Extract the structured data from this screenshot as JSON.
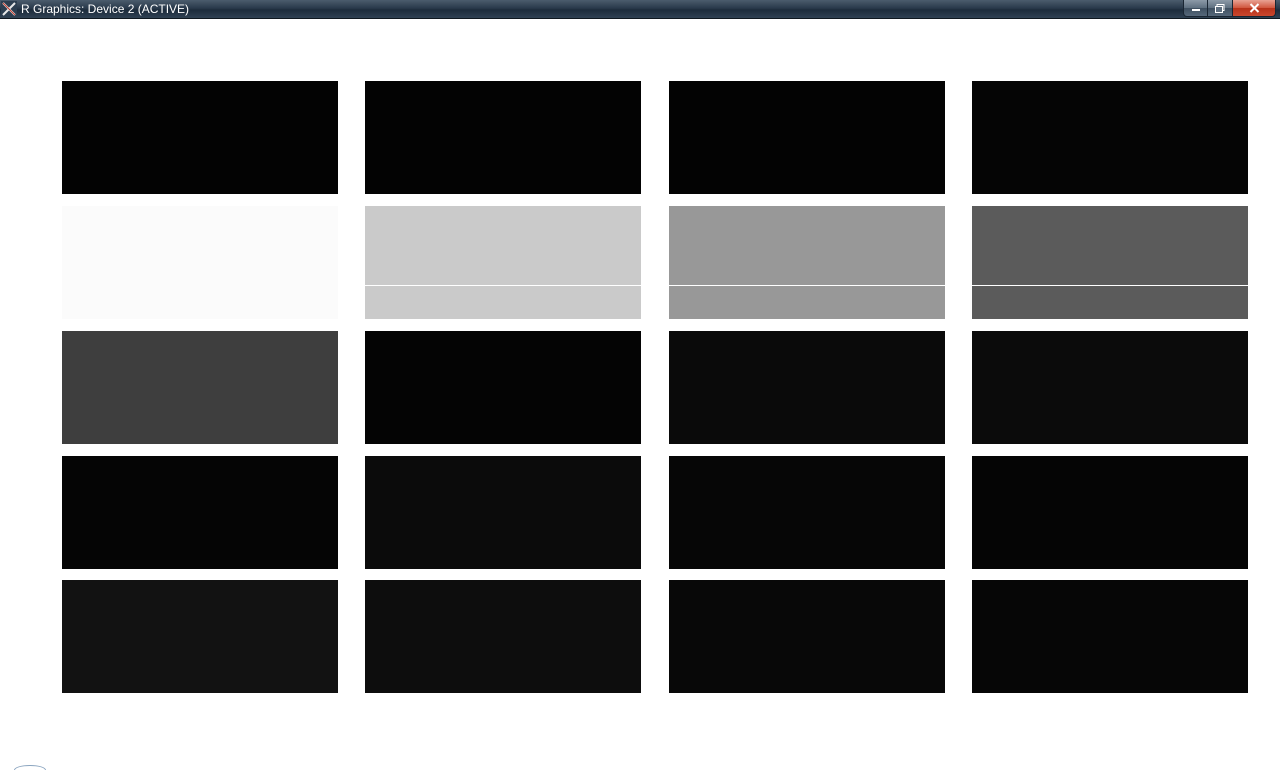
{
  "window": {
    "title": "R Graphics: Device 2 (ACTIVE)",
    "app_icon": "r-graphics-icon",
    "caption_buttons": {
      "minimize_icon": "minimize-icon",
      "maximize_icon": "maximize-icon",
      "close_icon": "close-icon"
    }
  },
  "plot": {
    "rows": 5,
    "columns": 4,
    "swatches": [
      {
        "color": "#030303",
        "divider": false
      },
      {
        "color": "#030303",
        "divider": false
      },
      {
        "color": "#030303",
        "divider": false
      },
      {
        "color": "#050505",
        "divider": false
      },
      {
        "color": "#fbfbfb",
        "divider": false
      },
      {
        "color": "#cacaca",
        "divider": true
      },
      {
        "color": "#989898",
        "divider": true
      },
      {
        "color": "#5b5b5b",
        "divider": true
      },
      {
        "color": "#3e3e3e",
        "divider": false
      },
      {
        "color": "#040404",
        "divider": false
      },
      {
        "color": "#0a0a0a",
        "divider": false
      },
      {
        "color": "#0b0b0b",
        "divider": false
      },
      {
        "color": "#050505",
        "divider": false
      },
      {
        "color": "#0b0b0b",
        "divider": false
      },
      {
        "color": "#060606",
        "divider": false
      },
      {
        "color": "#050505",
        "divider": false
      },
      {
        "color": "#121212",
        "divider": false
      },
      {
        "color": "#0d0d0d",
        "divider": false
      },
      {
        "color": "#080808",
        "divider": false
      },
      {
        "color": "#060606",
        "divider": false
      }
    ]
  }
}
